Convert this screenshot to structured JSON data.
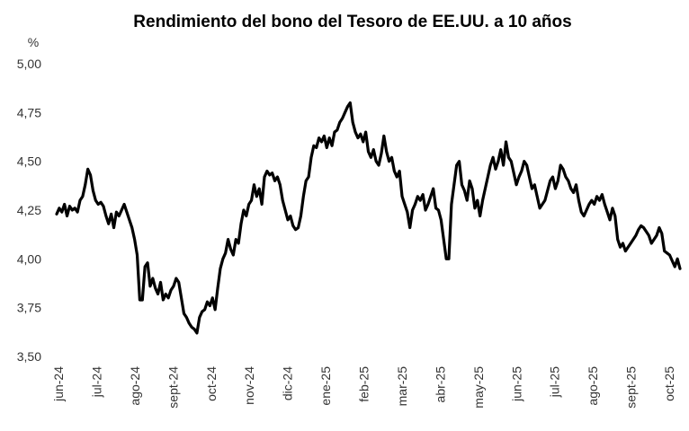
{
  "chart_data": {
    "type": "line",
    "title": "Rendimiento del bono del Tesoro de EE.UU. a 10 años",
    "ylabel": "%",
    "xlabel": "",
    "ylim": [
      3.5,
      5.0
    ],
    "yticks": [
      "3,50",
      "3,75",
      "4,00",
      "4,25",
      "4,50",
      "4,75",
      "5,00"
    ],
    "ytick_values": [
      3.5,
      3.75,
      4.0,
      4.25,
      4.5,
      4.75,
      5.0
    ],
    "xticks": [
      "jun-24",
      "jul-24",
      "ago-24",
      "sept-24",
      "oct-24",
      "nov-24",
      "dic-24",
      "ene-25",
      "feb-25",
      "mar-25",
      "abr-25",
      "may-25",
      "jun-25",
      "jul-25",
      "ago-25",
      "sept-25",
      "oct-25"
    ],
    "grid": false,
    "legend": "none",
    "line_color": "#000000",
    "series": [
      {
        "values": [
          4.23,
          4.26,
          4.24,
          4.28,
          4.22,
          4.27,
          4.25,
          4.26,
          4.24,
          4.3,
          4.32,
          4.38,
          4.46,
          4.43,
          4.35,
          4.3,
          4.28,
          4.29,
          4.27,
          4.22,
          4.18,
          4.23,
          4.16,
          4.24,
          4.22,
          4.25,
          4.28,
          4.24,
          4.2,
          4.16,
          4.1,
          4.02,
          3.79,
          3.79,
          3.96,
          3.98,
          3.86,
          3.9,
          3.85,
          3.82,
          3.88,
          3.79,
          3.82,
          3.8,
          3.84,
          3.86,
          3.9,
          3.88,
          3.8,
          3.72,
          3.7,
          3.67,
          3.65,
          3.64,
          3.62,
          3.7,
          3.73,
          3.74,
          3.78,
          3.76,
          3.8,
          3.74,
          3.85,
          3.95,
          4.0,
          4.03,
          4.1,
          4.05,
          4.02,
          4.1,
          4.08,
          4.18,
          4.25,
          4.22,
          4.28,
          4.3,
          4.38,
          4.32,
          4.36,
          4.28,
          4.42,
          4.45,
          4.43,
          4.44,
          4.4,
          4.42,
          4.38,
          4.3,
          4.25,
          4.2,
          4.22,
          4.17,
          4.15,
          4.16,
          4.22,
          4.32,
          4.4,
          4.42,
          4.52,
          4.58,
          4.57,
          4.62,
          4.6,
          4.63,
          4.57,
          4.62,
          4.58,
          4.65,
          4.66,
          4.7,
          4.72,
          4.75,
          4.78,
          4.8,
          4.7,
          4.65,
          4.62,
          4.64,
          4.6,
          4.65,
          4.55,
          4.52,
          4.56,
          4.5,
          4.48,
          4.54,
          4.63,
          4.55,
          4.5,
          4.52,
          4.45,
          4.42,
          4.45,
          4.32,
          4.28,
          4.24,
          4.16,
          4.25,
          4.28,
          4.32,
          4.3,
          4.33,
          4.25,
          4.28,
          4.32,
          4.36,
          4.26,
          4.25,
          4.2,
          4.1,
          4.0,
          4.0,
          4.28,
          4.38,
          4.48,
          4.5,
          4.38,
          4.35,
          4.3,
          4.4,
          4.36,
          4.26,
          4.3,
          4.22,
          4.3,
          4.36,
          4.42,
          4.48,
          4.52,
          4.46,
          4.5,
          4.56,
          4.48,
          4.6,
          4.52,
          4.5,
          4.44,
          4.38,
          4.42,
          4.45,
          4.5,
          4.48,
          4.42,
          4.36,
          4.38,
          4.32,
          4.26,
          4.28,
          4.3,
          4.35,
          4.4,
          4.42,
          4.36,
          4.4,
          4.48,
          4.46,
          4.42,
          4.4,
          4.36,
          4.34,
          4.38,
          4.3,
          4.24,
          4.22,
          4.25,
          4.28,
          4.3,
          4.28,
          4.32,
          4.3,
          4.33,
          4.28,
          4.24,
          4.2,
          4.26,
          4.22,
          4.1,
          4.06,
          4.08,
          4.04,
          4.06,
          4.08,
          4.1,
          4.12,
          4.15,
          4.17,
          4.16,
          4.14,
          4.12,
          4.08,
          4.1,
          4.12,
          4.16,
          4.13,
          4.04,
          4.03,
          4.02,
          3.99,
          3.96,
          4.0,
          3.95
        ]
      }
    ]
  }
}
